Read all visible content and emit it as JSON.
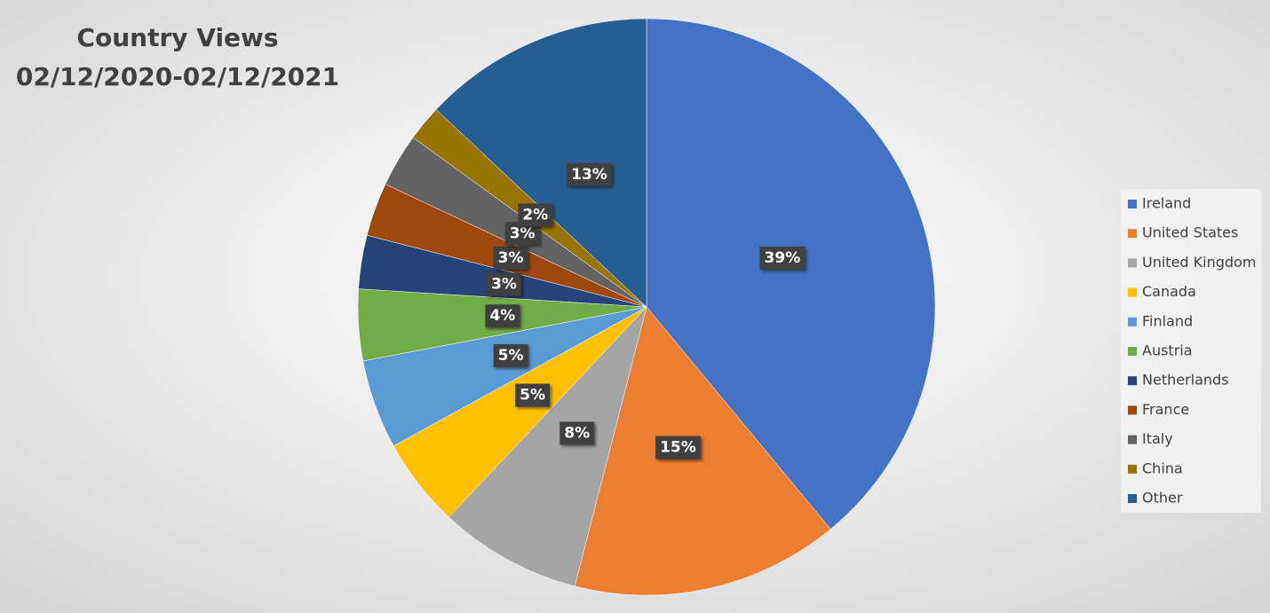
{
  "chart_data": {
    "type": "pie",
    "title": "Country Views",
    "subtitle": "02/12/2020-02/12/2021",
    "categories": [
      "Ireland",
      "United States",
      "United Kingdom",
      "Canada",
      "Finland",
      "Austria",
      "Netherlands",
      "France",
      "Italy",
      "China",
      "Other"
    ],
    "values": [
      39,
      15,
      8,
      5,
      5,
      4,
      3,
      3,
      3,
      2,
      13
    ],
    "value_labels": [
      "39%",
      "15%",
      "8%",
      "5%",
      "5%",
      "4%",
      "3%",
      "3%",
      "3%",
      "2%",
      "13%"
    ],
    "colors": [
      "#4472c4",
      "#ed7d31",
      "#a5a5a5",
      "#ffc000",
      "#5b9bd5",
      "#70ad47",
      "#264478",
      "#9e480e",
      "#636363",
      "#997300",
      "#255e91"
    ],
    "legend": "right"
  }
}
